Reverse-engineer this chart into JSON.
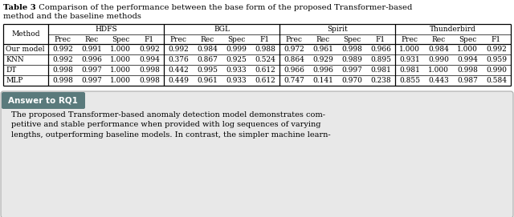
{
  "title_bold": "Table 3",
  "title_rest": "  Comparison of the performance between the base form of the proposed Transformer-based",
  "title_line2": "method and the baseline methods",
  "datasets": [
    "HDFS",
    "BGL",
    "Spirit",
    "Thunderbird"
  ],
  "metrics": [
    "Prec",
    "Rec",
    "Spec",
    "F1"
  ],
  "methods": [
    "Our model",
    "KNN",
    "DT",
    "MLP"
  ],
  "data": {
    "Our model": {
      "HDFS": [
        0.992,
        0.991,
        1.0,
        0.992
      ],
      "BGL": [
        0.992,
        0.984,
        0.999,
        0.988
      ],
      "Spirit": [
        0.972,
        0.961,
        0.998,
        0.966
      ],
      "Thunderbird": [
        1.0,
        0.984,
        1.0,
        0.992
      ]
    },
    "KNN": {
      "HDFS": [
        0.992,
        0.996,
        1.0,
        0.994
      ],
      "BGL": [
        0.376,
        0.867,
        0.925,
        0.524
      ],
      "Spirit": [
        0.864,
        0.929,
        0.989,
        0.895
      ],
      "Thunderbird": [
        0.931,
        0.99,
        0.994,
        0.959
      ]
    },
    "DT": {
      "HDFS": [
        0.998,
        0.997,
        1.0,
        0.998
      ],
      "BGL": [
        0.442,
        0.995,
        0.933,
        0.612
      ],
      "Spirit": [
        0.966,
        0.996,
        0.997,
        0.981
      ],
      "Thunderbird": [
        0.981,
        1.0,
        0.998,
        0.99
      ]
    },
    "MLP": {
      "HDFS": [
        0.998,
        0.997,
        1.0,
        0.998
      ],
      "BGL": [
        0.449,
        0.961,
        0.933,
        0.612
      ],
      "Spirit": [
        0.747,
        0.141,
        0.97,
        0.238
      ],
      "Thunderbird": [
        0.855,
        0.443,
        0.987,
        0.584
      ]
    }
  },
  "answer_box_color": "#5a7a7c",
  "answer_box_text": "Answer to RQ1",
  "answer_text_lines": [
    "The proposed Transformer-based anomaly detection model demonstrates com-",
    "petitive and stable performance when provided with log sequences of varying",
    "lengths, outperforming baseline models. In contrast, the simpler machine learn-"
  ],
  "fig_width": 6.4,
  "fig_height": 2.71,
  "dpi": 100
}
